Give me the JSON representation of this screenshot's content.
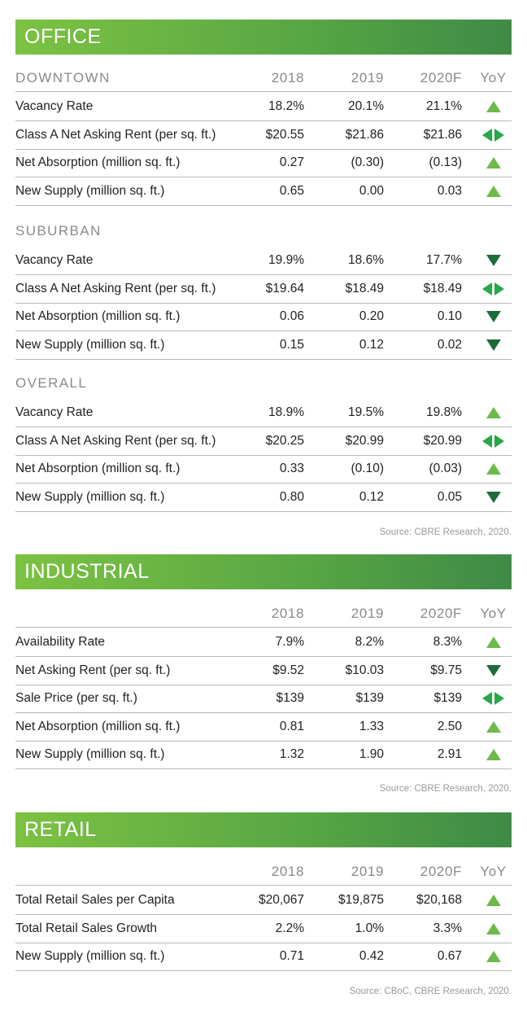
{
  "office": {
    "title": "OFFICE",
    "years": [
      "2018",
      "2019",
      "2020F",
      "YoY"
    ],
    "downtown": {
      "label": "DOWNTOWN",
      "rows": [
        {
          "label": "Vacancy Rate",
          "v1": "18.2%",
          "v2": "20.1%",
          "v3": "21.1%",
          "trend": "up"
        },
        {
          "label": "Class A Net Asking Rent (per sq. ft.)",
          "v1": "$20.55",
          "v2": "$21.86",
          "v3": "$21.86",
          "trend": "flat"
        },
        {
          "label": "Net Absorption (million sq. ft.)",
          "v1": "0.27",
          "v2": "(0.30)",
          "v3": "(0.13)",
          "trend": "up"
        },
        {
          "label": "New Supply (million sq. ft.)",
          "v1": "0.65",
          "v2": "0.00",
          "v3": "0.03",
          "trend": "up"
        }
      ]
    },
    "suburban": {
      "label": "SUBURBAN",
      "rows": [
        {
          "label": "Vacancy Rate",
          "v1": "19.9%",
          "v2": "18.6%",
          "v3": "17.7%",
          "trend": "down"
        },
        {
          "label": "Class A Net Asking Rent (per sq. ft.)",
          "v1": "$19.64",
          "v2": "$18.49",
          "v3": "$18.49",
          "trend": "flat"
        },
        {
          "label": "Net Absorption (million sq. ft.)",
          "v1": "0.06",
          "v2": "0.20",
          "v3": "0.10",
          "trend": "down"
        },
        {
          "label": "New Supply (million sq. ft.)",
          "v1": "0.15",
          "v2": "0.12",
          "v3": "0.02",
          "trend": "down"
        }
      ]
    },
    "overall": {
      "label": "OVERALL",
      "rows": [
        {
          "label": "Vacancy Rate",
          "v1": "18.9%",
          "v2": "19.5%",
          "v3": "19.8%",
          "trend": "up"
        },
        {
          "label": "Class A Net Asking Rent (per sq. ft.)",
          "v1": "$20.25",
          "v2": "$20.99",
          "v3": "$20.99",
          "trend": "flat"
        },
        {
          "label": "Net Absorption (million sq. ft.)",
          "v1": "0.33",
          "v2": "(0.10)",
          "v3": "(0.03)",
          "trend": "up"
        },
        {
          "label": "New Supply (million sq. ft.)",
          "v1": "0.80",
          "v2": "0.12",
          "v3": "0.05",
          "trend": "down"
        }
      ]
    },
    "source": "Source: CBRE Research, 2020."
  },
  "industrial": {
    "title": "INDUSTRIAL",
    "years": [
      "2018",
      "2019",
      "2020F",
      "YoY"
    ],
    "rows": [
      {
        "label": "Availability Rate",
        "v1": "7.9%",
        "v2": "8.2%",
        "v3": "8.3%",
        "trend": "up"
      },
      {
        "label": "Net Asking Rent (per sq. ft.)",
        "v1": "$9.52",
        "v2": "$10.03",
        "v3": "$9.75",
        "trend": "down"
      },
      {
        "label": "Sale Price (per sq. ft.)",
        "v1": "$139",
        "v2": "$139",
        "v3": "$139",
        "trend": "flat"
      },
      {
        "label": "Net Absorption (million sq. ft.)",
        "v1": "0.81",
        "v2": "1.33",
        "v3": "2.50",
        "trend": "up"
      },
      {
        "label": "New Supply (million sq. ft.)",
        "v1": "1.32",
        "v2": "1.90",
        "v3": "2.91",
        "trend": "up"
      }
    ],
    "source": "Source: CBRE Research, 2020."
  },
  "retail": {
    "title": "RETAIL",
    "years": [
      "2018",
      "2019",
      "2020F",
      "YoY"
    ],
    "rows": [
      {
        "label": "Total Retail Sales per Capita",
        "v1": "$20,067",
        "v2": "$19,875",
        "v3": "$20,168",
        "trend": "up"
      },
      {
        "label": "Total Retail Sales Growth",
        "v1": "2.2%",
        "v2": "1.0%",
        "v3": "3.3%",
        "trend": "up"
      },
      {
        "label": "New Supply (million sq. ft.)",
        "v1": "0.71",
        "v2": "0.42",
        "v3": "0.67",
        "trend": "up"
      }
    ],
    "source": "Source: CBoC, CBRE Research, 2020."
  },
  "colors": {
    "banner_start": "#7cc242",
    "banner_end": "#3f8a46",
    "trend_up": "#6cba4a",
    "trend_down": "#1e6b3a",
    "trend_flat": "#27a84a"
  }
}
